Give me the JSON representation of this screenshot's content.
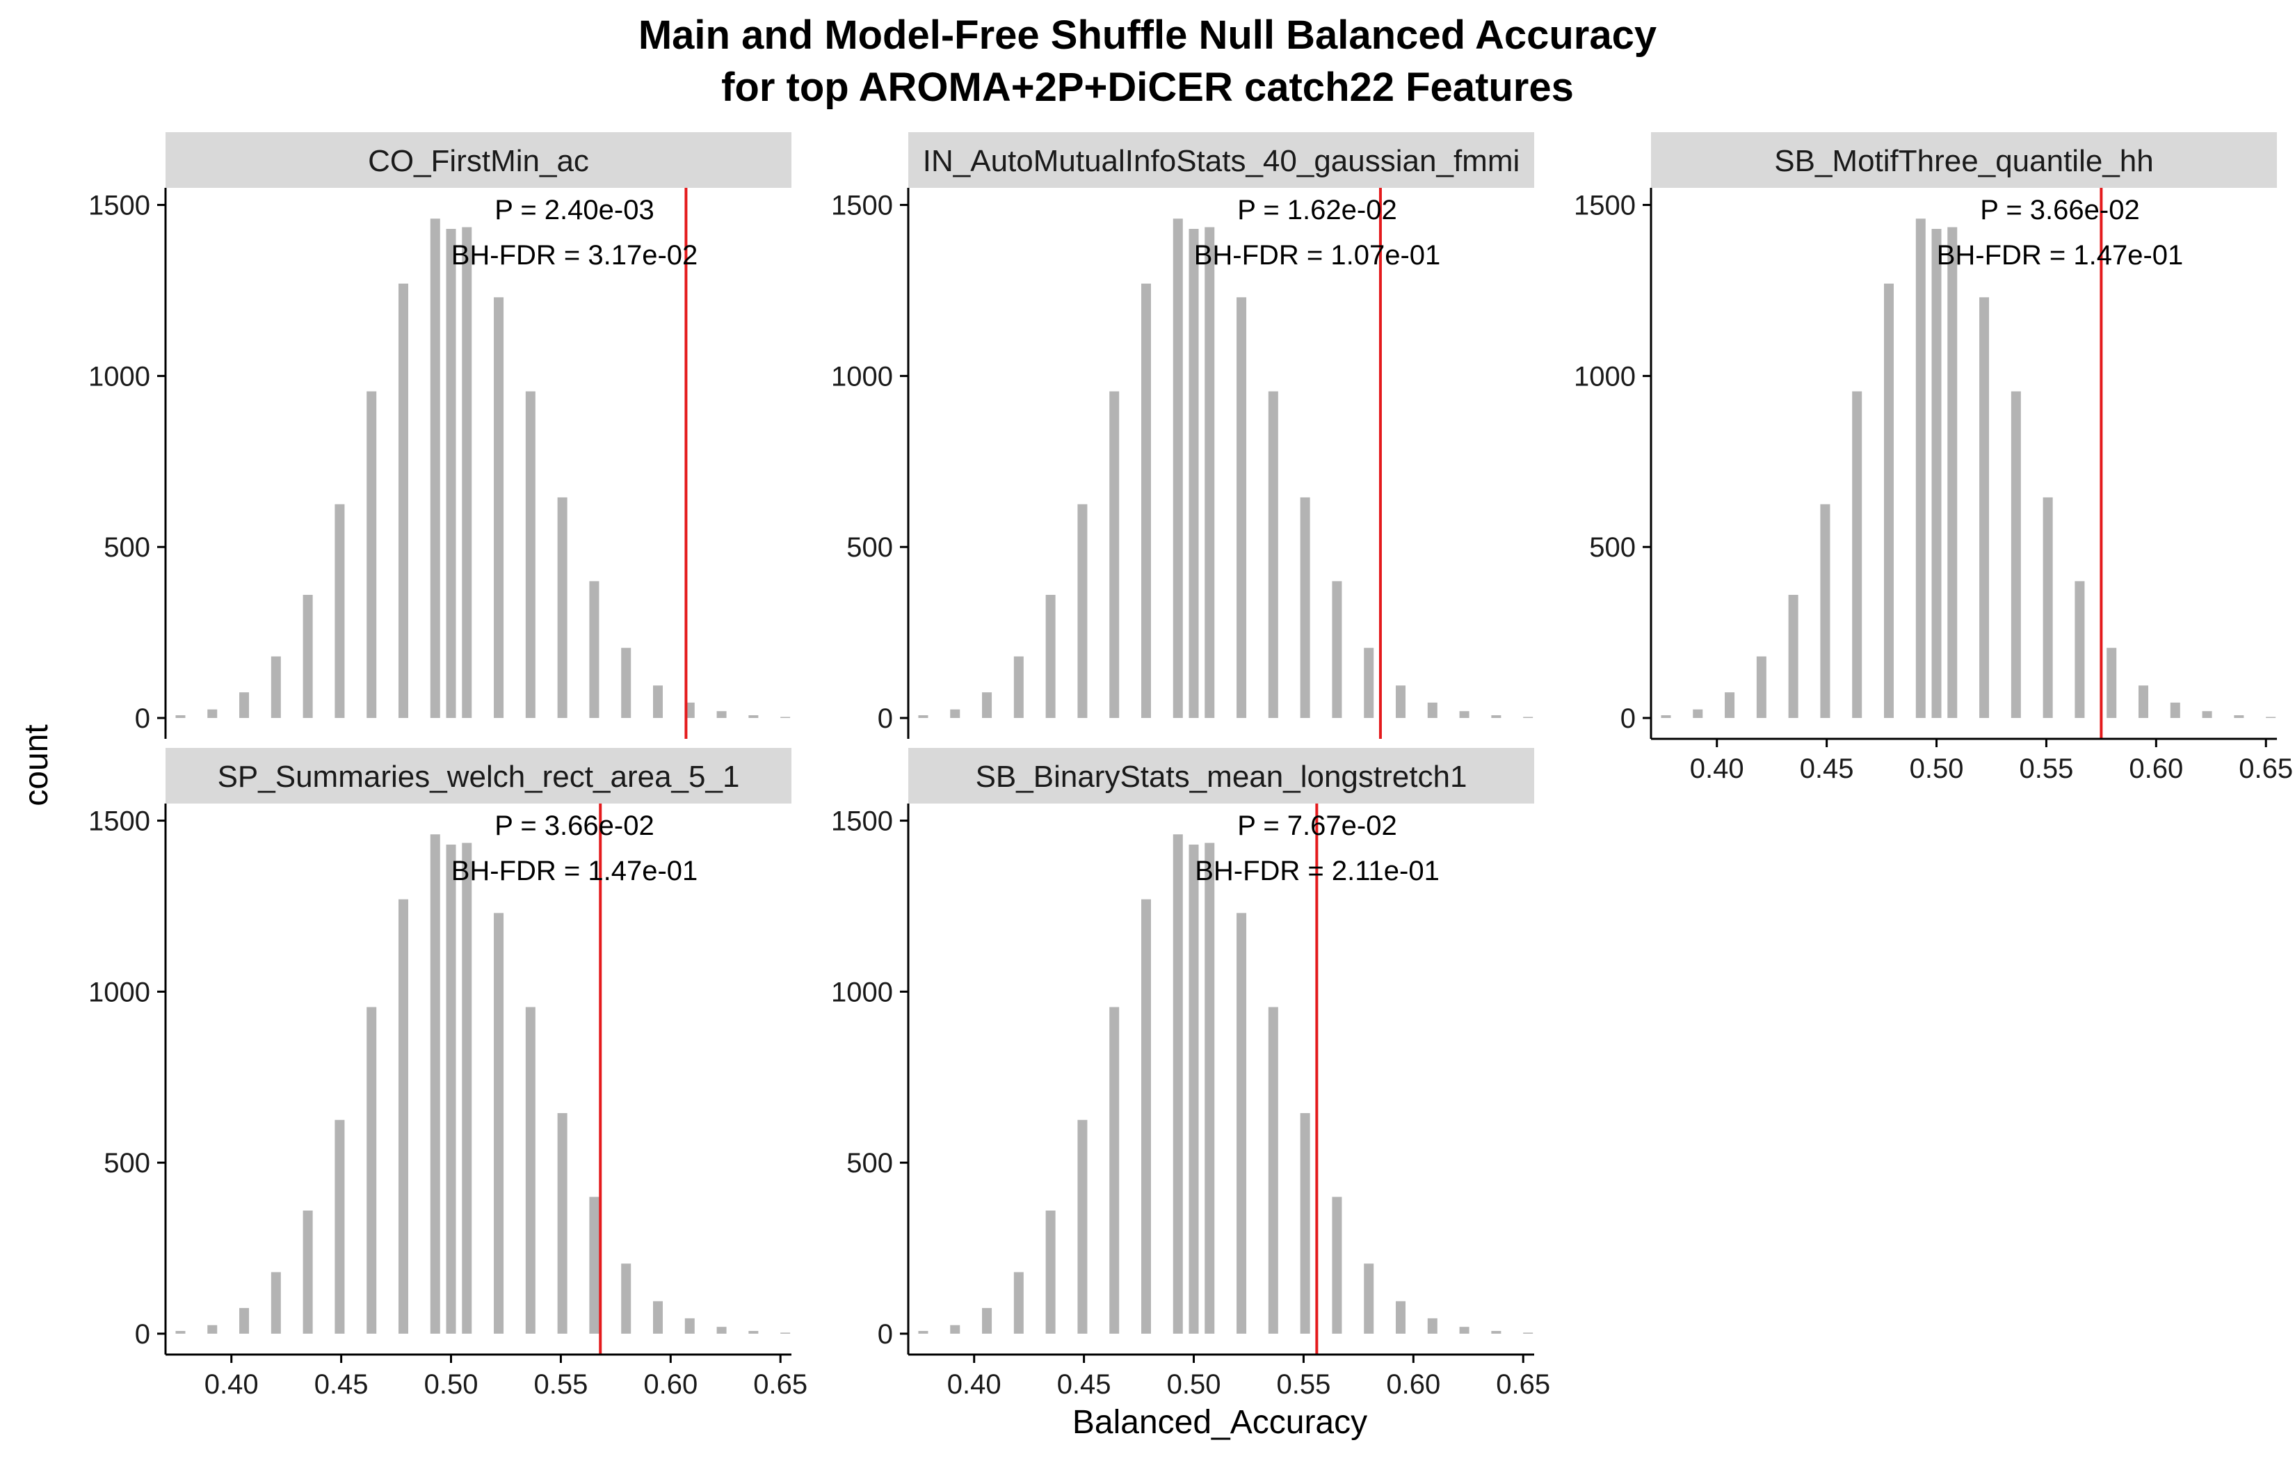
{
  "figure": {
    "title_line1": "Main and Model-Free Shuffle Null Balanced Accuracy",
    "title_line2": "for top AROMA+2P+DiCER catch22 Features",
    "xlabel": "Balanced_Accuracy",
    "ylabel": "count"
  },
  "colors": {
    "bar": "#b3b3b3",
    "line": "#e41a1c",
    "strip": "#d9d9d9",
    "axis": "#000000"
  },
  "chart_data": {
    "type": "bar",
    "xlim": [
      0.37,
      0.655
    ],
    "ylim": [
      0,
      1550
    ],
    "x_ticks": [
      0.4,
      0.45,
      0.5,
      0.55,
      0.6,
      0.65
    ],
    "x_tick_labels": [
      "0.40",
      "0.45",
      "0.50",
      "0.55",
      "0.60",
      "0.65"
    ],
    "y_ticks": [
      0,
      500,
      1000,
      1500
    ],
    "y_tick_labels": [
      "0",
      "500",
      "1000",
      "1500"
    ],
    "null_distribution": {
      "x": [
        0.3768,
        0.3913,
        0.4058,
        0.4203,
        0.4348,
        0.4493,
        0.4638,
        0.4783,
        0.4928,
        0.5,
        0.5072,
        0.5217,
        0.5362,
        0.5507,
        0.5652,
        0.5797,
        0.5942,
        0.6087,
        0.6232,
        0.6377,
        0.6522
      ],
      "count": [
        8,
        25,
        75,
        180,
        360,
        625,
        955,
        1270,
        1460,
        1430,
        1435,
        1230,
        955,
        645,
        400,
        205,
        95,
        45,
        20,
        8,
        3
      ]
    },
    "panels": [
      {
        "feature": "CO_FirstMin_ac",
        "p_label": "P = 2.40e-03",
        "fdr_label": "BH-FDR = 3.17e-02",
        "main_accuracy": 0.607
      },
      {
        "feature": "IN_AutoMutualInfoStats_40_gaussian_fmmi",
        "p_label": "P = 1.62e-02",
        "fdr_label": "BH-FDR = 1.07e-01",
        "main_accuracy": 0.585
      },
      {
        "feature": "SB_MotifThree_quantile_hh",
        "p_label": "P = 3.66e-02",
        "fdr_label": "BH-FDR = 1.47e-01",
        "main_accuracy": 0.575
      },
      {
        "feature": "SP_Summaries_welch_rect_area_5_1",
        "p_label": "P = 3.66e-02",
        "fdr_label": "BH-FDR = 1.47e-01",
        "main_accuracy": 0.568
      },
      {
        "feature": "SB_BinaryStats_mean_longstretch1",
        "p_label": "P = 7.67e-02",
        "fdr_label": "BH-FDR = 2.11e-01",
        "main_accuracy": 0.556
      }
    ]
  }
}
